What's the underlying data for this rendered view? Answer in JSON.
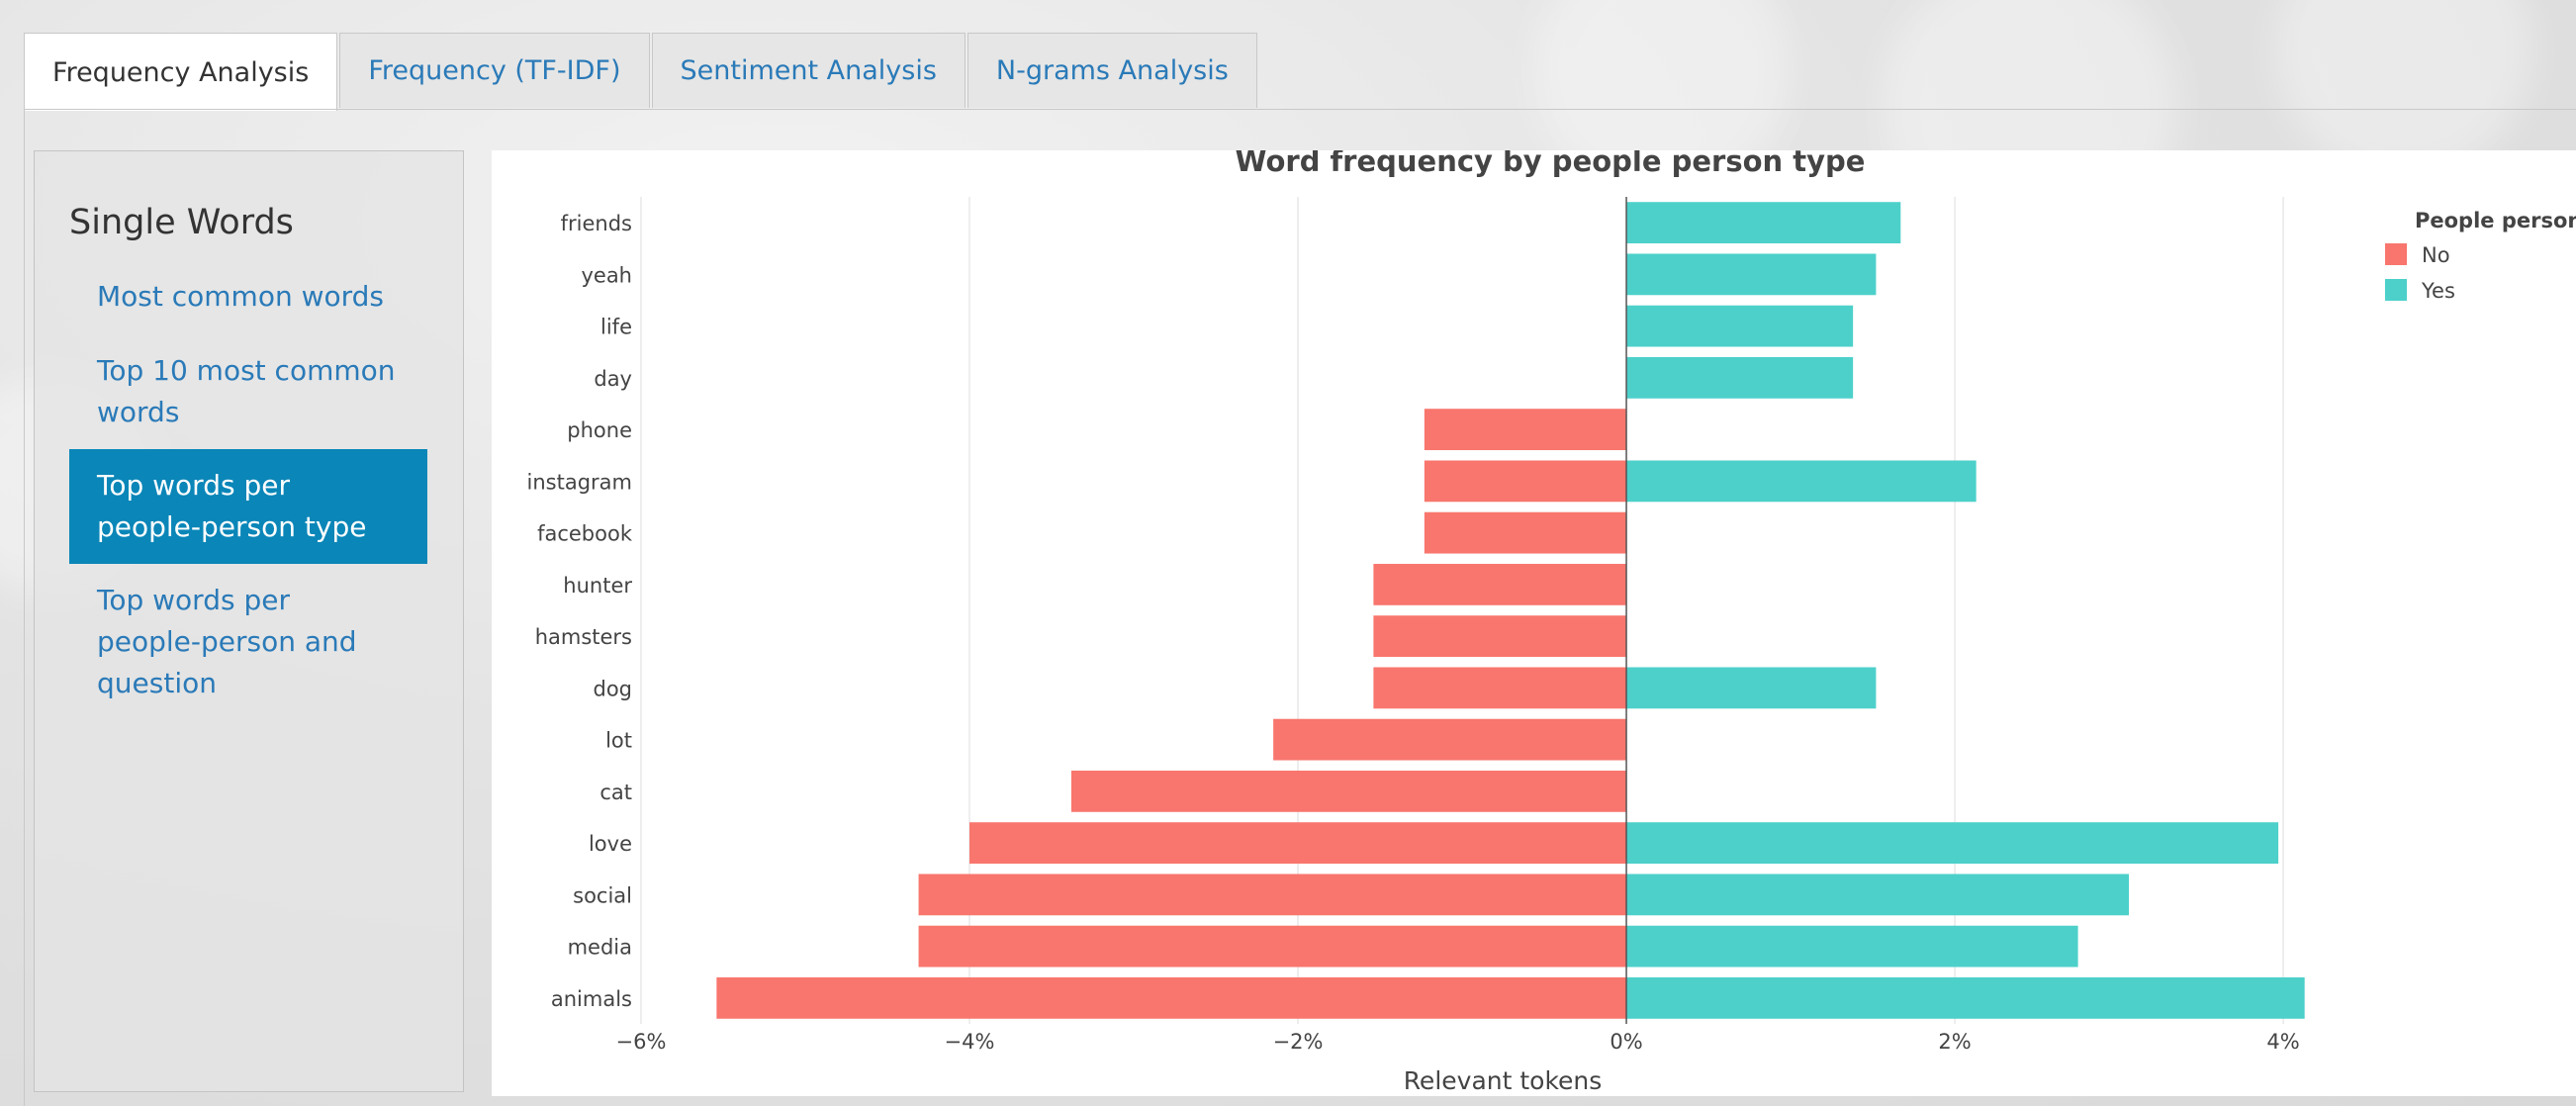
{
  "tabs": [
    {
      "label": "Frequency Analysis",
      "active": true
    },
    {
      "label": "Frequency (TF-IDF)",
      "active": false
    },
    {
      "label": "Sentiment Analysis",
      "active": false
    },
    {
      "label": "N-grams Analysis",
      "active": false
    }
  ],
  "sidebar": {
    "heading": "Single Words",
    "links": [
      {
        "label": "Most common words",
        "active": false
      },
      {
        "label": "Top 10 most common words",
        "active": false
      },
      {
        "label": "Top words per people-person type",
        "active": true
      },
      {
        "label": "Top words per people-person and question",
        "active": false
      }
    ]
  },
  "chart_data": {
    "type": "bar",
    "orientation": "horizontal",
    "title": "Word frequency by people person type",
    "xlabel": "Relevant tokens",
    "ylabel": "",
    "xlim": [
      -6,
      4.15
    ],
    "x_ticks": [
      -6,
      -4,
      -2,
      0,
      2,
      4
    ],
    "x_tick_labels": [
      "−6%",
      "−4%",
      "−2%",
      "0%",
      "2%",
      "4%"
    ],
    "grid": true,
    "legend_title": "People person?",
    "legend_position": "top-right",
    "categories": [
      "friends",
      "yeah",
      "life",
      "day",
      "phone",
      "instagram",
      "facebook",
      "hunter",
      "hamsters",
      "dog",
      "lot",
      "cat",
      "love",
      "social",
      "media",
      "animals"
    ],
    "series": [
      {
        "name": "No",
        "color": "#f8766d",
        "values": [
          0,
          0,
          0,
          0,
          -1.23,
          -1.23,
          -1.23,
          -1.54,
          -1.54,
          -1.54,
          -2.15,
          -3.38,
          -4.0,
          -4.31,
          -4.31,
          -5.54
        ]
      },
      {
        "name": "Yes",
        "color": "#4dd0ca",
        "values": [
          1.67,
          1.52,
          1.38,
          1.38,
          0,
          2.13,
          0,
          0,
          0,
          1.52,
          0,
          0,
          3.97,
          3.06,
          2.75,
          4.13
        ]
      }
    ]
  }
}
